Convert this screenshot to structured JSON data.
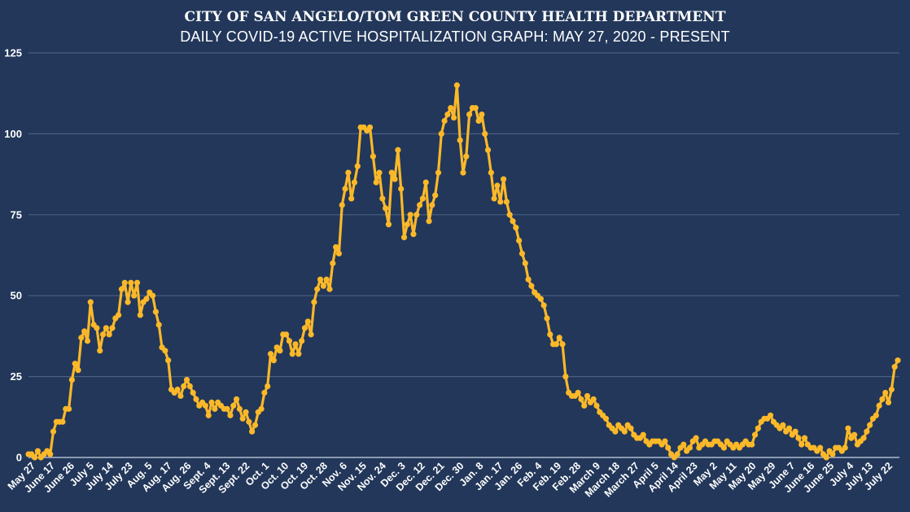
{
  "chart_data": {
    "type": "line",
    "title": "CITY OF SAN ANGELO/TOM GREEN COUNTY HEALTH DEPARTMENT",
    "subtitle": "DAILY COVID-19 ACTIVE HOSPITALIZATION GRAPH: MAY 27, 2020 - PRESENT",
    "xlabel": "",
    "ylabel": "",
    "ylim": [
      0,
      125
    ],
    "yticks": [
      0,
      25,
      50,
      75,
      100,
      125
    ],
    "grid": true,
    "legend": "none",
    "colors": {
      "background": "#22375a",
      "line": "#fbb829",
      "grid": "#4a5f80",
      "text": "#ffffff"
    },
    "x_tick_labels": [
      "May 27",
      "June 17",
      "June 26",
      "July 5",
      "July 14",
      "July 23",
      "Aug. 5",
      "Aug. 17",
      "Aug. 26",
      "Sept. 4",
      "Sept. 13",
      "Sept. 22",
      "Oct. 1",
      "Oct. 10",
      "Oct. 19",
      "Oct. 28",
      "Nov. 6",
      "Nov. 15",
      "Nov. 24",
      "Dec. 3",
      "Dec. 12",
      "Dec. 21",
      "Dec. 30",
      "Jan. 8",
      "Jan. 17",
      "Jan. 26",
      "Feb. 4",
      "Feb. 19",
      "Feb. 28",
      "March 9",
      "March 18",
      "March 27",
      "April 5",
      "April 14",
      "April 23",
      "May 2",
      "May 11",
      "May 20",
      "May 29",
      "June 7",
      "June 16",
      "June 25",
      "July 4",
      "July 13",
      "July 22"
    ],
    "series": [
      {
        "name": "Active Hospitalizations",
        "values": [
          1,
          1,
          0,
          2,
          0,
          1,
          2,
          1,
          8,
          11,
          11,
          11,
          15,
          15,
          24,
          29,
          27,
          37,
          39,
          36,
          48,
          41,
          40,
          33,
          38,
          40,
          38,
          40,
          43,
          44,
          52,
          54,
          48,
          54,
          50,
          54,
          44,
          48,
          49,
          51,
          50,
          45,
          41,
          34,
          33,
          30,
          21,
          20,
          21,
          19,
          22,
          24,
          22,
          20,
          18,
          16,
          17,
          16,
          13,
          17,
          15,
          17,
          16,
          15,
          15,
          13,
          16,
          18,
          15,
          12,
          14,
          11,
          8,
          10,
          14,
          15,
          20,
          22,
          32,
          30,
          34,
          33,
          38,
          38,
          36,
          32,
          35,
          32,
          36,
          40,
          42,
          38,
          48,
          52,
          55,
          53,
          55,
          52,
          60,
          65,
          63,
          78,
          83,
          88,
          80,
          85,
          90,
          102,
          102,
          101,
          102,
          93,
          85,
          88,
          80,
          77,
          72,
          88,
          86,
          95,
          83,
          68,
          72,
          75,
          69,
          75,
          78,
          80,
          85,
          73,
          78,
          81,
          88,
          100,
          104,
          106,
          108,
          105,
          115,
          98,
          88,
          93,
          106,
          108,
          108,
          104,
          106,
          100,
          95,
          88,
          80,
          84,
          79,
          86,
          79,
          75,
          73,
          71,
          67,
          63,
          60,
          55,
          53,
          51,
          50,
          49,
          47,
          43,
          38,
          35,
          35,
          37,
          35,
          25,
          20,
          19,
          19,
          20,
          18,
          16,
          19,
          17,
          18,
          16,
          14,
          13,
          12,
          10,
          9,
          8,
          10,
          9,
          8,
          10,
          9,
          7,
          6,
          6,
          7,
          5,
          4,
          5,
          5,
          5,
          4,
          5,
          3,
          1,
          0,
          1,
          3,
          4,
          2,
          3,
          5,
          6,
          3,
          4,
          5,
          4,
          4,
          5,
          5,
          4,
          3,
          5,
          4,
          3,
          4,
          3,
          4,
          5,
          4,
          4,
          7,
          9,
          11,
          12,
          12,
          13,
          11,
          10,
          9,
          10,
          8,
          9,
          7,
          8,
          6,
          4,
          6,
          4,
          3,
          3,
          2,
          3,
          1,
          0,
          2,
          1,
          3,
          3,
          2,
          3,
          9,
          6,
          7,
          4,
          5,
          6,
          8,
          10,
          12,
          13,
          16,
          18,
          20,
          17,
          21,
          28,
          30
        ]
      }
    ]
  }
}
